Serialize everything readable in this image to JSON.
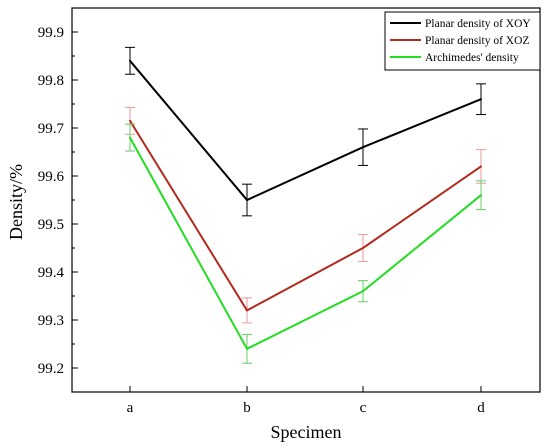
{
  "chart_data": {
    "type": "line",
    "categories": [
      "a",
      "b",
      "c",
      "d"
    ],
    "xlabel": "Specimen",
    "ylabel": "Density/%",
    "ylim": [
      99.15,
      99.95
    ],
    "yticks": [
      "99.2",
      "99.3",
      "99.4",
      "99.5",
      "99.6",
      "99.7",
      "99.8",
      "99.9"
    ],
    "legend_position": "top-right",
    "grid": false,
    "series": [
      {
        "name": "Planar density of XOY",
        "color": "#000000",
        "values": [
          99.84,
          99.55,
          99.66,
          99.76
        ],
        "errors": [
          0.028,
          0.033,
          0.038,
          0.032
        ]
      },
      {
        "name": "Planar density of XOZ",
        "color": "#b22a1e",
        "error_color": "#e89a9a",
        "values": [
          99.715,
          99.32,
          99.45,
          99.62
        ],
        "errors": [
          0.028,
          0.026,
          0.028,
          0.035
        ]
      },
      {
        "name": "Archimedes' density",
        "color": "#22dd22",
        "error_color": "#66cc66",
        "values": [
          99.68,
          99.24,
          99.36,
          99.56
        ],
        "errors": [
          0.028,
          0.03,
          0.022,
          0.03
        ]
      }
    ]
  }
}
